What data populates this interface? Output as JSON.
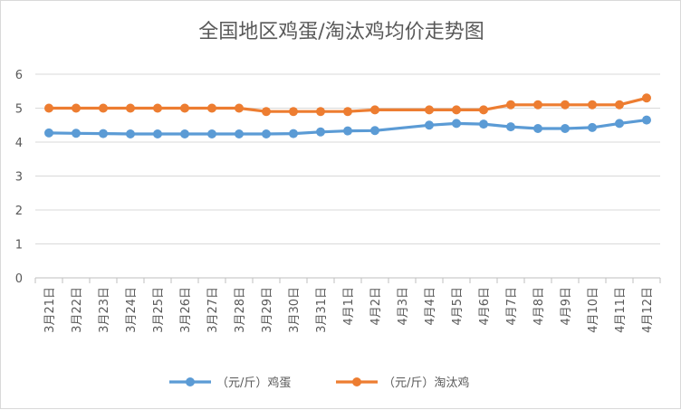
{
  "chart_data": {
    "type": "line",
    "title": "全国地区鸡蛋/淘汰鸡均价走势图",
    "categories": [
      "3月21日",
      "3月22日",
      "3月23日",
      "3月24日",
      "3月25日",
      "3月26日",
      "3月27日",
      "3月28日",
      "3月29日",
      "3月30日",
      "3月31日",
      "4月1日",
      "4月2日",
      "4月3日",
      "4月4日",
      "4月5日",
      "4月6日",
      "4月7日",
      "4月8日",
      "4月9日",
      "4月10日",
      "4月11日",
      "4月12日"
    ],
    "ylim": [
      0,
      6
    ],
    "yticks": [
      0,
      1,
      2,
      3,
      4,
      5,
      6
    ],
    "grid": true,
    "legend_position": "bottom",
    "series": [
      {
        "name": "（元/斤）鸡蛋",
        "color": "#5b9bd5",
        "values": [
          4.27,
          4.26,
          4.25,
          4.24,
          4.24,
          4.24,
          4.24,
          4.24,
          4.24,
          4.25,
          4.3,
          4.33,
          4.34,
          null,
          4.5,
          4.55,
          4.53,
          4.45,
          4.4,
          4.4,
          4.43,
          4.55,
          4.65
        ]
      },
      {
        "name": "（元/斤）淘汰鸡",
        "color": "#ed7d31",
        "values": [
          5.0,
          5.0,
          5.0,
          5.0,
          5.0,
          5.0,
          5.0,
          5.0,
          4.9,
          4.9,
          4.9,
          4.9,
          4.95,
          null,
          4.95,
          4.95,
          4.95,
          5.1,
          5.1,
          5.1,
          5.1,
          5.1,
          5.3
        ]
      }
    ]
  }
}
